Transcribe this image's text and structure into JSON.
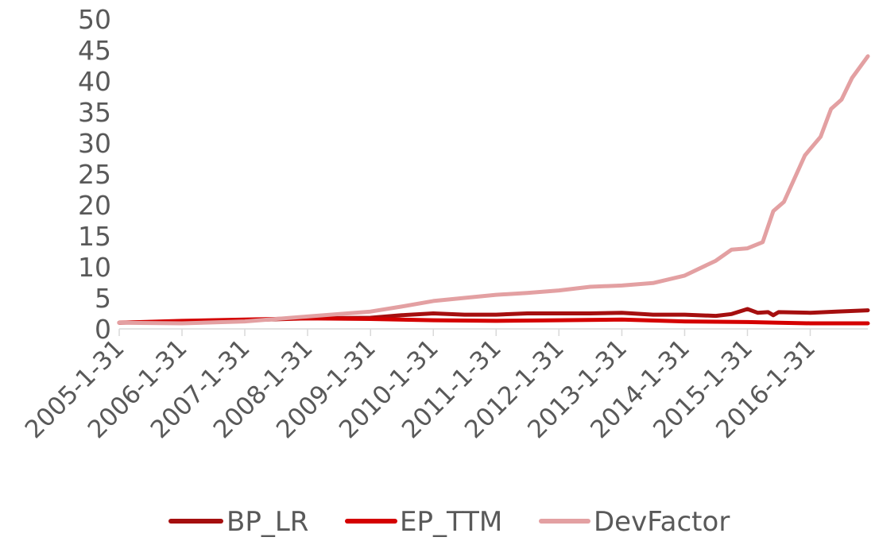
{
  "chart_data": {
    "type": "line",
    "x_ticks": [
      "2005-1-31",
      "2006-1-31",
      "2007-1-31",
      "2008-1-31",
      "2009-1-31",
      "2010-1-31",
      "2011-1-31",
      "2012-1-31",
      "2013-1-31",
      "2014-1-31",
      "2015-1-31",
      "2016-1-31"
    ],
    "x_range": [
      "2005-01-31",
      "2016-12-31"
    ],
    "ylim": [
      0,
      50
    ],
    "y_ticks": [
      0,
      5,
      10,
      15,
      20,
      25,
      30,
      35,
      40,
      45,
      50
    ],
    "grid": false,
    "legend_position": "bottom",
    "series": [
      {
        "name": "BP_LR",
        "color": "#a50f0f",
        "points": [
          [
            "2005-01-31",
            1.0
          ],
          [
            "2006-01-31",
            1.2
          ],
          [
            "2007-01-31",
            1.4
          ],
          [
            "2008-01-31",
            1.7
          ],
          [
            "2009-01-31",
            1.8
          ],
          [
            "2009-07-31",
            2.2
          ],
          [
            "2010-01-31",
            2.5
          ],
          [
            "2010-07-31",
            2.3
          ],
          [
            "2011-01-31",
            2.3
          ],
          [
            "2011-07-31",
            2.5
          ],
          [
            "2012-01-31",
            2.5
          ],
          [
            "2012-07-31",
            2.5
          ],
          [
            "2013-01-31",
            2.6
          ],
          [
            "2013-07-31",
            2.3
          ],
          [
            "2014-01-31",
            2.3
          ],
          [
            "2014-07-31",
            2.1
          ],
          [
            "2014-10-31",
            2.4
          ],
          [
            "2015-01-31",
            3.2
          ],
          [
            "2015-03-31",
            2.6
          ],
          [
            "2015-05-31",
            2.7
          ],
          [
            "2015-06-30",
            2.2
          ],
          [
            "2015-07-31",
            2.7
          ],
          [
            "2016-01-31",
            2.6
          ],
          [
            "2016-06-30",
            2.8
          ],
          [
            "2016-12-31",
            3.0
          ]
        ]
      },
      {
        "name": "EP_TTM",
        "color": "#d40000",
        "points": [
          [
            "2005-01-31",
            1.0
          ],
          [
            "2006-01-31",
            1.3
          ],
          [
            "2007-01-31",
            1.5
          ],
          [
            "2008-01-31",
            1.7
          ],
          [
            "2009-01-31",
            1.6
          ],
          [
            "2010-01-31",
            1.4
          ],
          [
            "2011-01-31",
            1.3
          ],
          [
            "2012-01-31",
            1.4
          ],
          [
            "2013-01-31",
            1.5
          ],
          [
            "2014-01-31",
            1.2
          ],
          [
            "2015-01-31",
            1.1
          ],
          [
            "2015-07-31",
            1.0
          ],
          [
            "2016-01-31",
            0.9
          ],
          [
            "2016-12-31",
            0.9
          ]
        ]
      },
      {
        "name": "DevFactor",
        "color": "#e3a0a2",
        "points": [
          [
            "2005-01-31",
            1.0
          ],
          [
            "2006-01-31",
            0.9
          ],
          [
            "2007-01-31",
            1.2
          ],
          [
            "2008-01-31",
            2.0
          ],
          [
            "2009-01-31",
            2.8
          ],
          [
            "2009-07-31",
            3.6
          ],
          [
            "2010-01-31",
            4.5
          ],
          [
            "2010-07-31",
            5.0
          ],
          [
            "2011-01-31",
            5.5
          ],
          [
            "2011-07-31",
            5.8
          ],
          [
            "2012-01-31",
            6.2
          ],
          [
            "2012-07-31",
            6.8
          ],
          [
            "2013-01-31",
            7.0
          ],
          [
            "2013-07-31",
            7.4
          ],
          [
            "2014-01-31",
            8.6
          ],
          [
            "2014-07-31",
            11.0
          ],
          [
            "2014-10-31",
            12.8
          ],
          [
            "2015-01-31",
            13.0
          ],
          [
            "2015-04-30",
            14.0
          ],
          [
            "2015-06-30",
            19.0
          ],
          [
            "2015-08-31",
            20.5
          ],
          [
            "2015-12-31",
            28.0
          ],
          [
            "2016-03-31",
            31.0
          ],
          [
            "2016-05-31",
            35.5
          ],
          [
            "2016-07-31",
            37.0
          ],
          [
            "2016-09-30",
            40.5
          ],
          [
            "2016-12-31",
            44.0
          ]
        ]
      }
    ]
  }
}
